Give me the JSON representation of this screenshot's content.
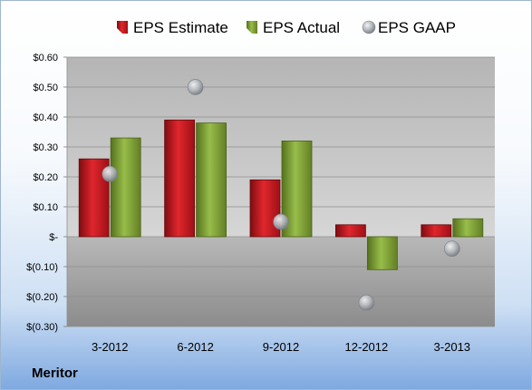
{
  "company": "Meritor",
  "colors": {
    "estimate": "#c8141c",
    "actual": "#7fa033",
    "gaap": "#a9aeb4"
  },
  "chart_data": {
    "type": "bar",
    "categories": [
      "3-2012",
      "6-2012",
      "9-2012",
      "12-2012",
      "3-2013"
    ],
    "series": [
      {
        "name": "EPS Estimate",
        "kind": "bar",
        "values": [
          0.26,
          0.39,
          0.19,
          0.04,
          0.04
        ]
      },
      {
        "name": "EPS Actual",
        "kind": "bar",
        "values": [
          0.33,
          0.38,
          0.32,
          -0.11,
          0.06
        ]
      },
      {
        "name": "EPS GAAP",
        "kind": "marker",
        "values": [
          0.21,
          0.5,
          0.05,
          -0.22,
          -0.04
        ]
      }
    ],
    "ylim": [
      -0.3,
      0.6
    ],
    "yticks": [
      0.6,
      0.5,
      0.4,
      0.3,
      0.2,
      0.1,
      0,
      -0.1,
      -0.2,
      -0.3
    ],
    "ytick_labels": [
      "$0.60",
      "$0.50",
      "$0.40",
      "$0.30",
      "$0.20",
      "$0.10",
      "$-",
      "$(0.10)",
      "$(0.20)",
      "$(0.30)"
    ],
    "legend_position": "top",
    "grid": true
  }
}
